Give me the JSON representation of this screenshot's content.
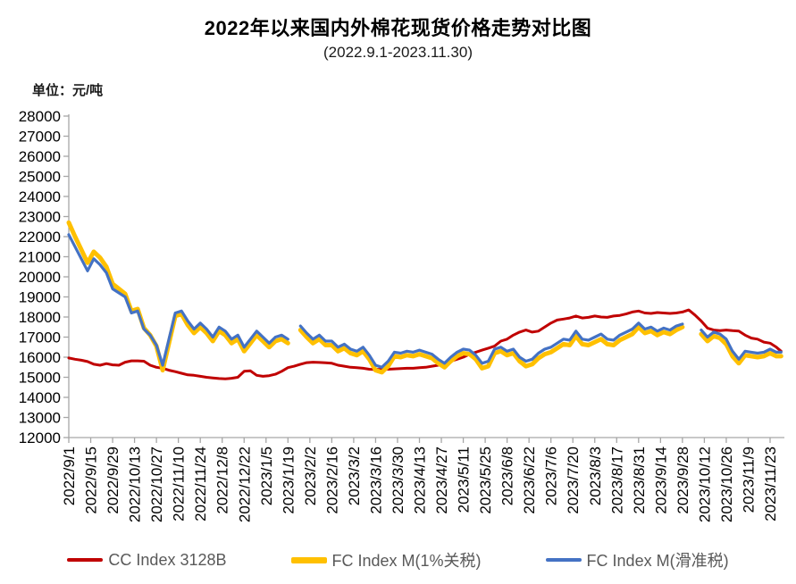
{
  "header": {
    "title": "2022年以来国内外棉花现货价格走势对比图",
    "subtitle": "(2022.9.1-2023.11.30)",
    "unit_label": "单位：元/吨"
  },
  "colors": {
    "cc_index_red": "#C00000",
    "fc_1pct_yellow": "#FFC000",
    "fc_sliding_blue": "#4472C4",
    "axis_gray": "#A6A6A6",
    "tick_label": "#000000",
    "legend_text": "#595959"
  },
  "legend": {
    "items": [
      {
        "label": "CC Index 3128B",
        "color": "#C00000",
        "thickness": 4
      },
      {
        "label": "FC Index M(1%关税)",
        "color": "#FFC000",
        "thickness": 7
      },
      {
        "label": "FC Index M(滑准税)",
        "color": "#4472C4",
        "thickness": 4
      }
    ]
  },
  "chart_data": {
    "type": "line",
    "title": "2022年以来国内外棉花现货价格走势对比图",
    "subtitle": "(2022.9.1-2023.11.30)",
    "ylabel": "元/吨",
    "xlabel": "",
    "grid": false,
    "legend_position": "bottom",
    "ylim": [
      12000,
      28000
    ],
    "y_ticks": [
      28000,
      27000,
      26000,
      25000,
      24000,
      23000,
      22000,
      21000,
      20000,
      19000,
      18000,
      17000,
      16000,
      15000,
      14000,
      13000,
      12000
    ],
    "x_tick_interval_days": 14,
    "x_tick_labels": [
      "2022/9/1",
      "2022/9/15",
      "2022/9/29",
      "2022/10/13",
      "2022/10/27",
      "2022/11/10",
      "2022/11/24",
      "2022/12/8",
      "2022/12/22",
      "2023/1/5",
      "2023/1/19",
      "2023/2/2",
      "2023/2/16",
      "2023/3/2",
      "2023/3/16",
      "2023/3/30",
      "2023/4/13",
      "2023/4/27",
      "2023/5/11",
      "2023/5/25",
      "2023/6/8",
      "2023/6/22",
      "2023/7/6",
      "2023/7/20",
      "2023/8/3",
      "2023/8/17",
      "2023/8/31",
      "2023/9/14",
      "2023/9/28",
      "2023/10/12",
      "2023/10/26",
      "2023/11/9",
      "2023/11/23"
    ],
    "x": [
      "2022/9/1",
      "2022/9/5",
      "2022/9/9",
      "2022/9/13",
      "2022/9/17",
      "2022/9/21",
      "2022/9/25",
      "2022/9/29",
      "2022/10/3",
      "2022/10/7",
      "2022/10/11",
      "2022/10/15",
      "2022/10/19",
      "2022/10/23",
      "2022/10/27",
      "2022/10/31",
      "2022/11/4",
      "2022/11/8",
      "2022/11/12",
      "2022/11/16",
      "2022/11/20",
      "2022/11/24",
      "2022/11/28",
      "2022/12/2",
      "2022/12/6",
      "2022/12/10",
      "2022/12/14",
      "2022/12/18",
      "2022/12/22",
      "2022/12/26",
      "2022/12/30",
      "2023/1/3",
      "2023/1/7",
      "2023/1/11",
      "2023/1/15",
      "2023/1/19",
      "2023/1/23",
      "2023/1/27",
      "2023/1/31",
      "2023/2/4",
      "2023/2/8",
      "2023/2/12",
      "2023/2/16",
      "2023/2/20",
      "2023/2/24",
      "2023/2/28",
      "2023/3/4",
      "2023/3/8",
      "2023/3/12",
      "2023/3/16",
      "2023/3/20",
      "2023/3/24",
      "2023/3/28",
      "2023/4/1",
      "2023/4/5",
      "2023/4/9",
      "2023/4/13",
      "2023/4/17",
      "2023/4/21",
      "2023/4/25",
      "2023/4/29",
      "2023/5/3",
      "2023/5/7",
      "2023/5/11",
      "2023/5/15",
      "2023/5/19",
      "2023/5/23",
      "2023/5/27",
      "2023/5/31",
      "2023/6/4",
      "2023/6/8",
      "2023/6/12",
      "2023/6/16",
      "2023/6/20",
      "2023/6/24",
      "2023/6/28",
      "2023/7/2",
      "2023/7/6",
      "2023/7/10",
      "2023/7/14",
      "2023/7/18",
      "2023/7/22",
      "2023/7/26",
      "2023/7/30",
      "2023/8/3",
      "2023/8/7",
      "2023/8/11",
      "2023/8/15",
      "2023/8/19",
      "2023/8/23",
      "2023/8/27",
      "2023/8/31",
      "2023/9/4",
      "2023/9/8",
      "2023/9/12",
      "2023/9/16",
      "2023/9/20",
      "2023/9/24",
      "2023/9/28",
      "2023/10/2",
      "2023/10/6",
      "2023/10/10",
      "2023/10/14",
      "2023/10/18",
      "2023/10/22",
      "2023/10/26",
      "2023/10/30",
      "2023/11/3",
      "2023/11/7",
      "2023/11/11",
      "2023/11/15",
      "2023/11/19",
      "2023/11/23",
      "2023/11/27",
      "2023/11/30"
    ],
    "series": [
      {
        "name": "CC Index 3128B",
        "color": "#C00000",
        "width": 3,
        "values": [
          15960,
          15900,
          15850,
          15780,
          15650,
          15600,
          15680,
          15620,
          15600,
          15750,
          15820,
          15820,
          15800,
          15600,
          15500,
          15450,
          15350,
          15280,
          15200,
          15120,
          15100,
          15050,
          15000,
          14970,
          14940,
          14920,
          14950,
          15000,
          15300,
          15320,
          15100,
          15050,
          15080,
          15150,
          15300,
          15480,
          15550,
          15650,
          15730,
          15750,
          15740,
          15720,
          15700,
          15600,
          15550,
          15500,
          15480,
          15450,
          15400,
          15380,
          15400,
          15400,
          15420,
          15430,
          15450,
          15450,
          15480,
          15500,
          15550,
          15600,
          15700,
          15800,
          15900,
          16000,
          16150,
          16250,
          16350,
          16450,
          16550,
          16800,
          16900,
          17100,
          17250,
          17350,
          17250,
          17300,
          17500,
          17700,
          17850,
          17900,
          17950,
          18050,
          17950,
          17980,
          18050,
          18000,
          17980,
          18050,
          18080,
          18150,
          18250,
          18300,
          18200,
          18180,
          18220,
          18200,
          18180,
          18200,
          18250,
          18350,
          18100,
          17800,
          17450,
          17350,
          17320,
          17350,
          17320,
          17300,
          17100,
          16950,
          16900,
          16750,
          16700,
          16500,
          16300
        ]
      },
      {
        "name": "FC Index M(1%关税)",
        "color": "#FFC000",
        "width": 5,
        "values": [
          22700,
          22000,
          21350,
          20700,
          21250,
          20950,
          20500,
          19650,
          19400,
          19150,
          18300,
          18400,
          17450,
          17100,
          16550,
          15350,
          16700,
          18050,
          18150,
          17600,
          17200,
          17500,
          17200,
          16800,
          17300,
          17100,
          16700,
          16900,
          16300,
          16700,
          17100,
          16800,
          16500,
          16800,
          16900,
          16700,
          null,
          17350,
          17000,
          16700,
          16900,
          16600,
          16600,
          16300,
          16450,
          16200,
          16100,
          16300,
          15900,
          15350,
          15250,
          15550,
          16050,
          16000,
          16100,
          16050,
          16150,
          16050,
          15950,
          15700,
          15500,
          15800,
          16050,
          16200,
          16150,
          15900,
          15450,
          15550,
          16200,
          16300,
          16100,
          16200,
          15800,
          15550,
          15650,
          15950,
          16150,
          16250,
          16450,
          16650,
          16600,
          17050,
          16650,
          16600,
          16750,
          16900,
          16650,
          16600,
          16850,
          17000,
          17150,
          17500,
          17200,
          17300,
          17100,
          17250,
          17150,
          17350,
          17500,
          null,
          null,
          17150,
          16800,
          17050,
          16950,
          16650,
          16050,
          15700,
          16100,
          16050,
          16000,
          16050,
          16200,
          16050,
          16050
        ]
      },
      {
        "name": "FC Index M(滑准税)",
        "color": "#4472C4",
        "width": 3.2,
        "values": [
          22100,
          21500,
          20900,
          20300,
          20900,
          20600,
          20200,
          19400,
          19200,
          19000,
          18200,
          18300,
          17400,
          17100,
          16600,
          15600,
          16900,
          18200,
          18300,
          17800,
          17400,
          17700,
          17400,
          17000,
          17500,
          17300,
          16900,
          17100,
          16500,
          16900,
          17300,
          17000,
          16700,
          17000,
          17100,
          16900,
          null,
          17550,
          17200,
          16900,
          17100,
          16800,
          16800,
          16500,
          16650,
          16400,
          16300,
          16500,
          16100,
          15600,
          15500,
          15800,
          16250,
          16200,
          16300,
          16250,
          16350,
          16250,
          16150,
          15900,
          15700,
          16000,
          16250,
          16400,
          16350,
          16100,
          15700,
          15800,
          16400,
          16500,
          16300,
          16400,
          16000,
          15800,
          15900,
          16200,
          16400,
          16500,
          16700,
          16900,
          16850,
          17300,
          16900,
          16850,
          17000,
          17150,
          16900,
          16850,
          17100,
          17250,
          17400,
          17700,
          17400,
          17500,
          17300,
          17450,
          17350,
          17550,
          17650,
          null,
          null,
          17350,
          17000,
          17250,
          17150,
          16900,
          16300,
          15900,
          16300,
          16250,
          16200,
          16250,
          16400,
          16250,
          16250
        ]
      }
    ]
  }
}
